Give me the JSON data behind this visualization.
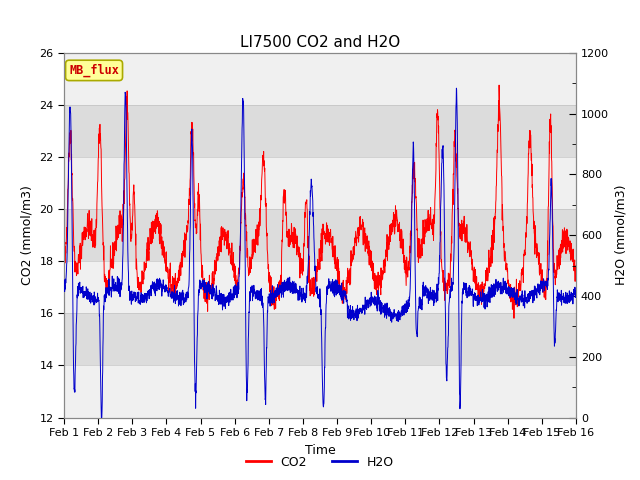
{
  "title": "LI7500 CO2 and H2O",
  "xlabel": "Time",
  "ylabel_left": "CO2 (mmol/m3)",
  "ylabel_right": "H2O (mmol/m3)",
  "co2_ylim": [
    12,
    26
  ],
  "h2o_ylim": [
    0,
    1200
  ],
  "co2_yticks": [
    12,
    14,
    16,
    18,
    20,
    22,
    24,
    26
  ],
  "h2o_yticks": [
    0,
    200,
    400,
    600,
    800,
    1000,
    1200
  ],
  "x_tick_labels": [
    "Feb 1",
    "Feb 2",
    "Feb 3",
    "Feb 4",
    "Feb 5",
    "Feb 6",
    "Feb 7",
    "Feb 8",
    "Feb 9",
    "Feb 10",
    "Feb 11",
    "Feb 12",
    "Feb 13",
    "Feb 14",
    "Feb 15",
    "Feb 16"
  ],
  "co2_color": "#FF0000",
  "h2o_color": "#0000CC",
  "legend_label_co2": "CO2",
  "legend_label_h2o": "H2O",
  "watermark_text": "MB_flux",
  "watermark_bg": "#FFFF99",
  "watermark_border": "#AAAA00",
  "light_band_color": "#F0F0F0",
  "dark_band_color": "#DCDCDC",
  "fig_bg_color": "#FFFFFF",
  "title_fontsize": 11,
  "axis_label_fontsize": 9,
  "tick_fontsize": 8,
  "legend_fontsize": 9,
  "n_points": 2304,
  "days": 15,
  "seed": 42
}
